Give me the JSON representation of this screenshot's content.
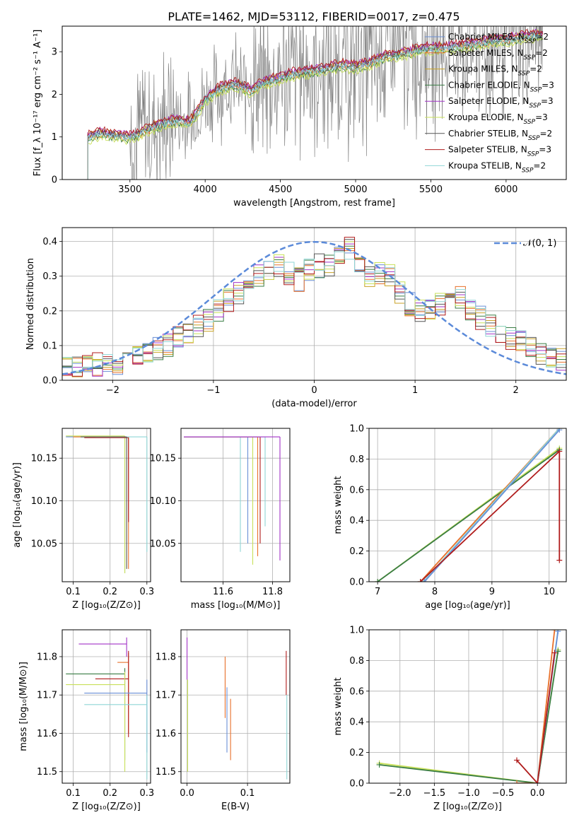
{
  "figure": {
    "title": "PLATE=1462, MJD=53112, FIBERID=0017, z=0.475",
    "series_colors": {
      "Chabrier MILES, N_SSP=2": "#6a8fd6",
      "Salpeter MILES, N_SSP=2": "#e8702a",
      "Kroupa MILES, N_SSP=2": "#c9a227",
      "Chabrier ELODIE, N_SSP=3": "#3a7d44",
      "Salpeter ELODIE, N_SSP=3": "#a233c7",
      "Kroupa ELODIE, N_SSP=3": "#c8e05a",
      "Chabrier STELIB, N_SSP=2": "#555555",
      "Salpeter STELIB, N_SSP=3": "#b01c1c",
      "Kroupa STELIB, N_SSP=2": "#8fd6d6"
    },
    "data_color": "#808080",
    "gaussian_color": "#5b8ad9"
  },
  "chart_data": [
    {
      "id": "spectrum",
      "type": "line",
      "title": "PLATE=1462, MJD=53112, FIBERID=0017, z=0.475",
      "xlabel": "wavelength [Angstrom, rest frame]",
      "ylabel": "Flux [f_λ 10⁻¹⁷ erg cm⁻² s⁻¹ A⁻¹]",
      "xlim": [
        3050,
        6400
      ],
      "ylim": [
        0,
        3.6
      ],
      "xticks": [
        3500,
        4000,
        4500,
        5000,
        5500,
        6000
      ],
      "yticks": [
        0,
        1,
        2,
        3
      ],
      "grid": false,
      "legend_position": "top-right",
      "x": [
        3220,
        3300,
        3400,
        3500,
        3600,
        3700,
        3800,
        3900,
        3950,
        4000,
        4100,
        4200,
        4300,
        4400,
        4500,
        4600,
        4700,
        4800,
        4900,
        5000,
        5100,
        5200,
        5300,
        5400,
        5500,
        5600,
        5700,
        5800,
        5900,
        6000,
        6100,
        6200
      ],
      "model_values": [
        1.0,
        1.1,
        1.05,
        1.0,
        1.15,
        1.3,
        1.4,
        1.35,
        1.6,
        1.9,
        2.15,
        2.25,
        2.1,
        2.3,
        2.4,
        2.5,
        2.55,
        2.6,
        2.7,
        2.65,
        2.75,
        2.9,
        2.95,
        3.05,
        3.1,
        3.1,
        3.15,
        3.2,
        3.25,
        3.3,
        3.35,
        3.4
      ],
      "series": [
        {
          "name": "Chabrier MILES, N_SSP=2",
          "offset": 0.0
        },
        {
          "name": "Salpeter MILES, N_SSP=2",
          "offset": -0.05
        },
        {
          "name": "Kroupa MILES, N_SSP=2",
          "offset": 0.04
        },
        {
          "name": "Chabrier ELODIE, N_SSP=3",
          "offset": -0.08
        },
        {
          "name": "Salpeter ELODIE, N_SSP=3",
          "offset": 0.06
        },
        {
          "name": "Kroupa ELODIE, N_SSP=3",
          "offset": -0.12
        },
        {
          "name": "Chabrier STELIB, N_SSP=2",
          "offset": 0.02
        },
        {
          "name": "Salpeter STELIB, N_SSP=3",
          "offset": 0.08
        },
        {
          "name": "Kroupa STELIB, N_SSP=2",
          "offset": -0.03
        }
      ]
    },
    {
      "id": "residuals",
      "type": "line",
      "xlabel": "(data-model)/error",
      "ylabel": "Normed distribution",
      "xlim": [
        -2.5,
        2.5
      ],
      "ylim": [
        0,
        0.44
      ],
      "xticks": [
        -2,
        -1,
        0,
        1,
        2
      ],
      "yticks": [
        0.0,
        0.1,
        0.2,
        0.3,
        0.4
      ],
      "grid": true,
      "legend_position": "top-right",
      "legend_label": "𝒩(0, 1)",
      "bins": [
        -2.5,
        -2.4,
        -2.3,
        -2.2,
        -2.1,
        -2.0,
        -1.9,
        -1.8,
        -1.7,
        -1.6,
        -1.5,
        -1.4,
        -1.3,
        -1.2,
        -1.1,
        -1.0,
        -0.9,
        -0.8,
        -0.7,
        -0.6,
        -0.5,
        -0.4,
        -0.3,
        -0.2,
        -0.1,
        0.0,
        0.1,
        0.2,
        0.3,
        0.4,
        0.5,
        0.6,
        0.7,
        0.8,
        0.9,
        1.0,
        1.1,
        1.2,
        1.3,
        1.4,
        1.5,
        1.6,
        1.7,
        1.8,
        1.9,
        2.0,
        2.1,
        2.2,
        2.3,
        2.4
      ],
      "histogram": [
        0.04,
        0.04,
        0.045,
        0.045,
        0.05,
        0.05,
        0.06,
        0.07,
        0.08,
        0.09,
        0.1,
        0.12,
        0.13,
        0.16,
        0.17,
        0.2,
        0.23,
        0.25,
        0.27,
        0.3,
        0.32,
        0.33,
        0.31,
        0.29,
        0.32,
        0.33,
        0.33,
        0.35,
        0.38,
        0.32,
        0.3,
        0.31,
        0.3,
        0.25,
        0.22,
        0.2,
        0.2,
        0.22,
        0.26,
        0.24,
        0.2,
        0.18,
        0.16,
        0.14,
        0.12,
        0.11,
        0.1,
        0.08,
        0.07,
        0.06
      ]
    },
    {
      "id": "age-vs-z",
      "type": "scatter",
      "xlabel": "Z [log₁₀(Z/Z⊙)]",
      "ylabel": "age  [log₁₀(age/yr)]",
      "xlim": [
        0.07,
        0.31
      ],
      "ylim": [
        10.005,
        10.185
      ],
      "xticks": [
        0.1,
        0.2,
        0.3
      ],
      "yticks": [
        10.05,
        10.1,
        10.15
      ],
      "grid": true,
      "points": [
        {
          "name": "Chabrier MILES, N_SSP=2",
          "x": 0.24,
          "y": 10.175,
          "x_lo": 0.08,
          "y_lo": 10.015
        },
        {
          "name": "Salpeter MILES, N_SSP=2",
          "x": 0.25,
          "y": 10.175,
          "x_lo": 0.1,
          "y_lo": 10.02
        },
        {
          "name": "Kroupa ELODIE, N_SSP=3",
          "x": 0.24,
          "y": 10.176,
          "x_lo": 0.08,
          "y_lo": 10.015
        },
        {
          "name": "Salpeter STELIB, N_SSP=3",
          "x": 0.25,
          "y": 10.174,
          "x_lo": 0.13,
          "y_lo": 10.075
        },
        {
          "name": "Kroupa STELIB, N_SSP=2",
          "x": 0.3,
          "y": 10.175,
          "x_lo": 0.16,
          "y_lo": 10.04
        },
        {
          "name": "Chabrier STELIB, N_SSP=2",
          "x": 0.245,
          "y": 10.175,
          "x_lo": 0.12,
          "y_lo": 10.02
        }
      ]
    },
    {
      "id": "age-vs-mass",
      "type": "scatter",
      "xlabel": "mass [log₁₀(M/M⊙)]",
      "ylabel": "",
      "xlim": [
        11.43,
        11.87
      ],
      "ylim": [
        10.005,
        10.185
      ],
      "xticks": [
        11.6,
        11.8
      ],
      "yticks": [
        10.05,
        10.1,
        10.15
      ],
      "grid": true,
      "points": [
        {
          "name": "Kroupa STELIB, N_SSP=2",
          "x": 11.67,
          "y": 10.175,
          "y_lo": 10.04
        },
        {
          "name": "Chabrier MILES, N_SSP=2",
          "x": 11.7,
          "y": 10.175,
          "y_lo": 10.05
        },
        {
          "name": "Kroupa ELODIE, N_SSP=3",
          "x": 11.72,
          "y": 10.175,
          "y_lo": 10.025
        },
        {
          "name": "Salpeter MILES, N_SSP=2",
          "x": 11.74,
          "y": 10.175,
          "y_lo": 10.035
        },
        {
          "name": "Salpeter STELIB, N_SSP=3",
          "x": 11.75,
          "y": 10.175,
          "y_lo": 10.05
        },
        {
          "name": "Kroupa STELIB, N_SSP=2",
          "x": 11.77,
          "y": 10.175,
          "y_lo": 10.07
        },
        {
          "name": "Salpeter ELODIE, N_SSP=3",
          "x": 11.83,
          "y": 10.175,
          "y_lo": 10.03
        }
      ]
    },
    {
      "id": "weight-vs-age",
      "type": "line",
      "xlabel": "age  [log₁₀(age/yr)]",
      "ylabel": "mass weight",
      "xlim": [
        6.85,
        10.3
      ],
      "ylim": [
        0,
        1.0
      ],
      "xticks": [
        7,
        8,
        9,
        10
      ],
      "yticks": [
        0.0,
        0.2,
        0.4,
        0.6,
        0.8,
        1.0
      ],
      "grid": true,
      "series": [
        {
          "name": "Kroupa ELODIE, N_SSP=3",
          "x": [
            7.0,
            10.18
          ],
          "y": [
            0.0,
            0.87
          ]
        },
        {
          "name": "Chabrier ELODIE, N_SSP=3",
          "x": [
            7.0,
            10.18
          ],
          "y": [
            0.0,
            0.86
          ]
        },
        {
          "name": "Salpeter MILES, N_SSP=2",
          "x": [
            7.75,
            10.18
          ],
          "y": [
            0.0,
            1.0
          ]
        },
        {
          "name": "Kroupa STELIB, N_SSP=2",
          "x": [
            7.8,
            10.18
          ],
          "y": [
            0.0,
            1.0
          ]
        },
        {
          "name": "Chabrier MILES, N_SSP=2",
          "x": [
            7.82,
            10.18
          ],
          "y": [
            0.0,
            0.99
          ]
        },
        {
          "name": "Salpeter STELIB, N_SSP=3",
          "x": [
            7.75,
            10.18,
            10.18
          ],
          "y": [
            0.0,
            0.85,
            0.14
          ]
        }
      ]
    },
    {
      "id": "mass-vs-z",
      "type": "scatter",
      "xlabel": "Z [log₁₀(Z/Z⊙)]",
      "ylabel": "mass [log₁₀(M/M⊙)]",
      "xlim": [
        0.07,
        0.31
      ],
      "ylim": [
        11.47,
        11.87
      ],
      "xticks": [
        0.1,
        0.2,
        0.3
      ],
      "yticks": [
        11.5,
        11.6,
        11.7,
        11.8
      ],
      "grid": true,
      "points": [
        {
          "name": "Salpeter ELODIE, N_SSP=3",
          "x": 0.245,
          "y": 11.833,
          "x_lo": 0.115,
          "y_lo": 11.8,
          "y_hi": 11.85
        },
        {
          "name": "Salpeter MILES, N_SSP=2",
          "x": 0.25,
          "y": 11.785,
          "x_lo": 0.22,
          "y_lo": 11.6,
          "y_hi": 11.81
        },
        {
          "name": "Chabrier ELODIE, N_SSP=3",
          "x": 0.24,
          "y": 11.755,
          "x_lo": 0.08,
          "y_lo": 11.53,
          "y_hi": 11.77
        },
        {
          "name": "Salpeter STELIB, N_SSP=3",
          "x": 0.25,
          "y": 11.742,
          "x_lo": 0.16,
          "y_lo": 11.59,
          "y_hi": 11.815
        },
        {
          "name": "Kroupa ELODIE, N_SSP=3",
          "x": 0.24,
          "y": 11.727,
          "x_lo": 0.08,
          "y_lo": 11.5,
          "y_hi": 11.76
        },
        {
          "name": "Chabrier MILES, N_SSP=2",
          "x": 0.3,
          "y": 11.705,
          "x_lo": 0.13,
          "y_lo": 11.55,
          "y_hi": 11.74
        },
        {
          "name": "Kroupa STELIB, N_SSP=2",
          "x": 0.3,
          "y": 11.675,
          "x_lo": 0.13,
          "y_lo": 11.48,
          "y_hi": 11.7
        }
      ]
    },
    {
      "id": "mass-vs-ebv",
      "type": "scatter",
      "xlabel": "E(B-V)",
      "ylabel": "",
      "xlim": [
        -0.01,
        0.17
      ],
      "ylim": [
        11.47,
        11.87
      ],
      "xticks": [
        0.0,
        0.1
      ],
      "yticks": [
        11.5,
        11.6,
        11.7,
        11.8
      ],
      "grid": true,
      "points": [
        {
          "name": "Salpeter ELODIE, N_SSP=3",
          "x": 0.0,
          "y_lo": 11.74,
          "y_hi": 11.85
        },
        {
          "name": "Kroupa ELODIE, N_SSP=3",
          "x": 0.001,
          "y_lo": 11.5,
          "y_hi": 11.74
        },
        {
          "name": "Salpeter MILES, N_SSP=2",
          "x": 0.063,
          "y_lo": 11.64,
          "y_hi": 11.8
        },
        {
          "name": "Chabrier MILES, N_SSP=2",
          "x": 0.066,
          "y_lo": 11.55,
          "y_hi": 11.72
        },
        {
          "name": "Salpeter MILES, N_SSP=2",
          "x": 0.072,
          "y_lo": 11.53,
          "y_hi": 11.69
        },
        {
          "name": "Salpeter STELIB, N_SSP=3",
          "x": 0.164,
          "y_lo": 11.7,
          "y_hi": 11.815
        },
        {
          "name": "Kroupa STELIB, N_SSP=2",
          "x": 0.165,
          "y_lo": 11.48,
          "y_hi": 11.7
        }
      ]
    },
    {
      "id": "weight-vs-z",
      "type": "line",
      "xlabel": "Z [log₁₀(Z/Z⊙)]",
      "ylabel": "mass weight",
      "xlim": [
        -2.45,
        0.42
      ],
      "ylim": [
        0,
        1.0
      ],
      "xticks": [
        -2.0,
        -1.5,
        -1.0,
        -0.5,
        0.0
      ],
      "yticks": [
        0.0,
        0.2,
        0.4,
        0.6,
        0.8,
        1.0
      ],
      "grid": true,
      "series": [
        {
          "name": "Kroupa ELODIE, N_SSP=3",
          "x": [
            -2.3,
            0.0,
            0.3
          ],
          "y": [
            0.13,
            0.0,
            0.87
          ]
        },
        {
          "name": "Chabrier ELODIE, N_SSP=3",
          "x": [
            -2.3,
            0.0,
            0.3
          ],
          "y": [
            0.12,
            0.0,
            0.86
          ]
        },
        {
          "name": "Salpeter MILES, N_SSP=2",
          "x": [
            -0.3,
            0.0,
            0.25
          ],
          "y": [
            0.0,
            0.0,
            1.0
          ]
        },
        {
          "name": "Kroupa STELIB, N_SSP=2",
          "x": [
            0.0,
            0.3
          ],
          "y": [
            0.0,
            1.0
          ]
        },
        {
          "name": "Chabrier MILES, N_SSP=2",
          "x": [
            0.0,
            0.3
          ],
          "y": [
            0.0,
            0.99
          ]
        },
        {
          "name": "Salpeter STELIB, N_SSP=3",
          "x": [
            -0.3,
            0.0,
            0.25
          ],
          "y": [
            0.15,
            0.0,
            0.85
          ]
        }
      ]
    }
  ]
}
